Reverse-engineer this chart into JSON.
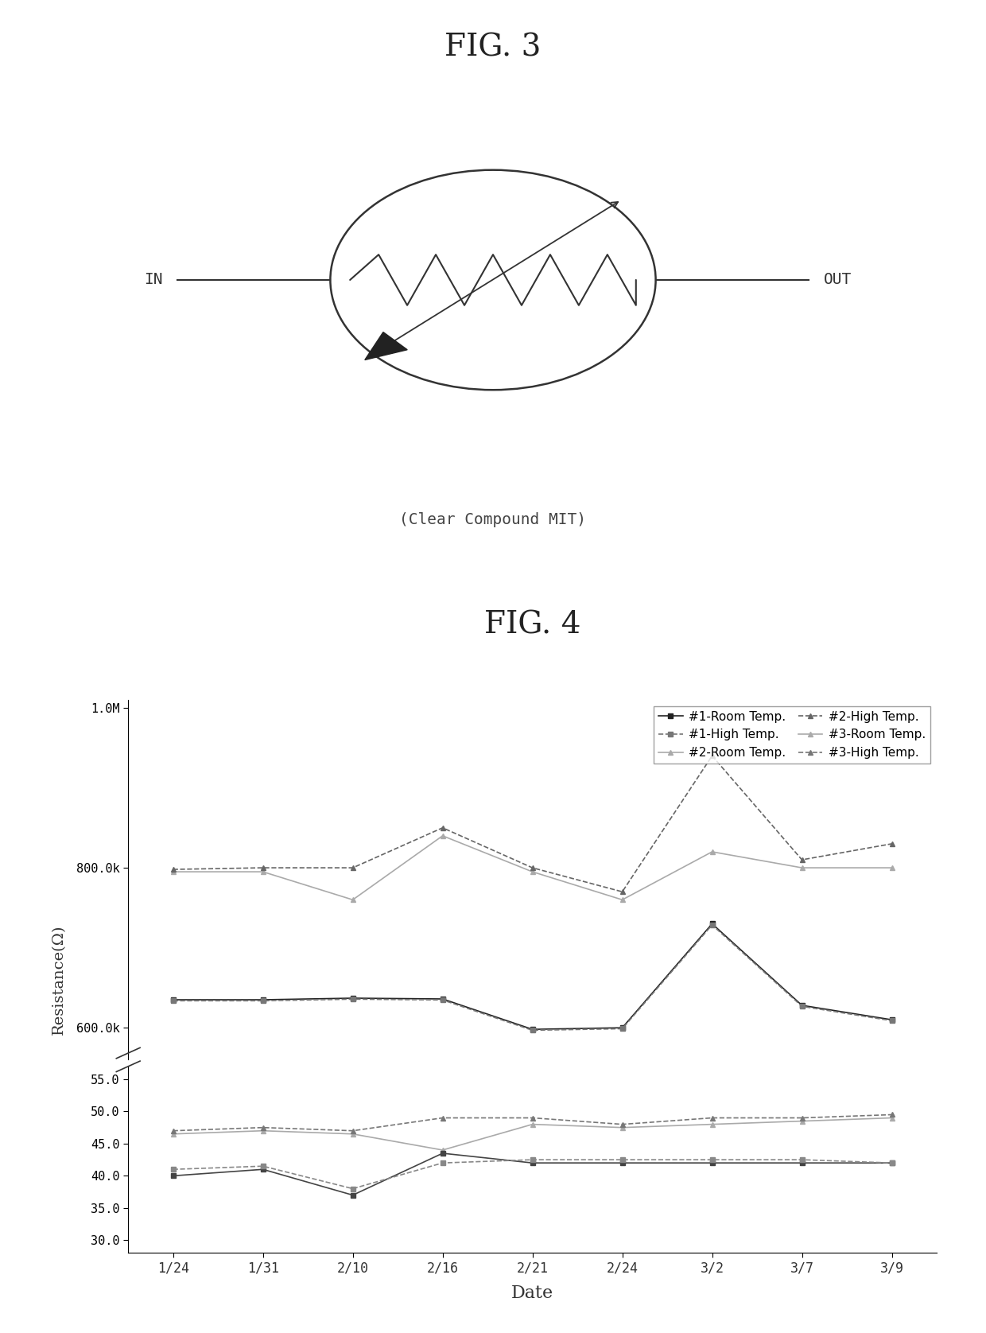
{
  "fig3_title": "FIG. 3",
  "fig3_caption": "(Clear Compound MIT)",
  "fig4_title": "FIG. 4",
  "dates": [
    "1/24",
    "1/31",
    "2/10",
    "2/16",
    "2/21",
    "2/24",
    "3/2",
    "3/7",
    "3/9"
  ],
  "s1_room": [
    635,
    635,
    637,
    636,
    598,
    600,
    730,
    628,
    610
  ],
  "s2_room": [
    795,
    795,
    760,
    840,
    795,
    760,
    820,
    800,
    800
  ],
  "s2_high": [
    798,
    800,
    800,
    850,
    800,
    770,
    940,
    810,
    830
  ],
  "s3_room": [
    46.5,
    47,
    46.5,
    44,
    48,
    47.5,
    48,
    48.5,
    49
  ],
  "s3_high": [
    47,
    47.5,
    47,
    49,
    49,
    48,
    49,
    49,
    49.5
  ],
  "s4_room": [
    40,
    41,
    37,
    43.5,
    42,
    42,
    42,
    42,
    42
  ],
  "s4_high": [
    41,
    41.5,
    38,
    42,
    42.5,
    42.5,
    42.5,
    42.5,
    42
  ],
  "ylabel": "Resistance(Ω)",
  "xlabel": "Date",
  "upper_yticks": [
    600,
    800,
    1000
  ],
  "upper_ylabels": [
    "600.0k",
    "800.0k",
    "1.0M"
  ],
  "lower_yticks": [
    30,
    35,
    40,
    45,
    50,
    55
  ],
  "lower_ylabels": [
    "30.0",
    "35.0",
    "40.0",
    "45.0",
    "50.0",
    "55.0"
  ],
  "upper_ylim": [
    560,
    1010
  ],
  "lower_ylim": [
    28,
    57
  ],
  "legend_entries": [
    "#1-Room Temp.",
    "#1-High Temp.",
    "#2-Room Temp.",
    "#2-High Temp.",
    "#3-Room Temp.",
    "#3-High Temp."
  ]
}
